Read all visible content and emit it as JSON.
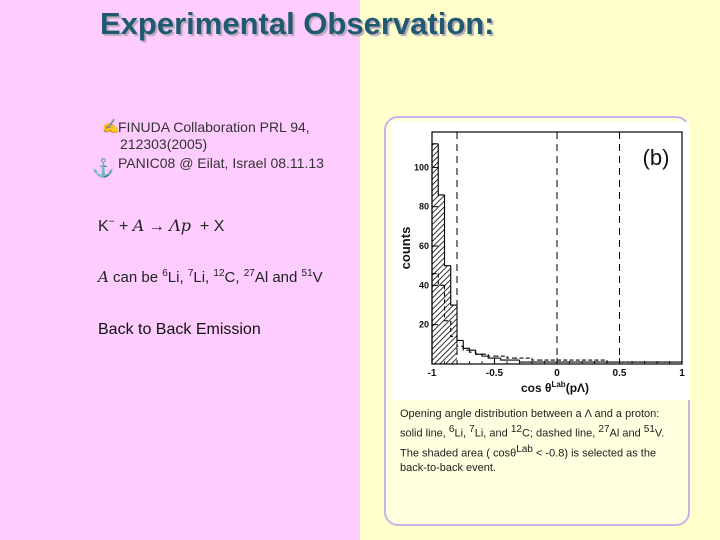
{
  "title": "Experimental Observation:",
  "reference": {
    "line1": "FINUDA Collaboration PRL 94,",
    "line2": "212303(2005)",
    "line3": "PANIC08 @ Eilat, Israel    08.11.13"
  },
  "icons": {
    "pencil": "pencil-icon",
    "anchor": "anchor-icon"
  },
  "reaction": {
    "kaon": "K",
    "kaon_charge": "−",
    "plus1": "+",
    "target": "A",
    "arrow": "→",
    "products": "Λp",
    "plus2": "+",
    "remnant": "X"
  },
  "targets": {
    "a_symbol": "A",
    "text": "can be",
    "li6_mass": "6",
    "li6_el": "Li,",
    "li7_mass": "7",
    "li7_el": "Li,",
    "c12_mass": "12",
    "c12_el": "C,",
    "al27_mass": "27",
    "al27_el": "Al and",
    "v51_mass": "51",
    "v51_el": "V"
  },
  "statement": "Back to Back Emission",
  "caption": {
    "line1": "Opening angle distribution between a Λ and a proton:",
    "line2_a": "solid line,",
    "line2_li6": "6",
    "line2_b": "Li,",
    "line2_li7": "7",
    "line2_c": "Li, and",
    "line2_c12": "12",
    "line2_d": "C; dashed line,",
    "line2_al": "27",
    "line2_e": "Al and",
    "line2_v": "51",
    "line2_f": "V.",
    "line3": "The shaded area ( cosθ",
    "line3_sup": "Lab",
    "line3_b": " < -0.8) is selected as the",
    "line4": "back-to-back event."
  },
  "colors": {
    "left_bg": "#ffccff",
    "right_bg": "#ffffcc",
    "title": "#1f5a70",
    "frame": "#c8b4e4"
  },
  "chart_data": {
    "type": "histogram",
    "panel_label": "(b)",
    "ylabel": "counts",
    "xlabel": "cos θ",
    "xlabel_sup": "Lab",
    "xlabel_tail": "(pΛ)",
    "xlim": [
      -1,
      1
    ],
    "ylim": [
      0,
      118
    ],
    "x_ticks": [
      -1,
      -0.5,
      0,
      0.5,
      1
    ],
    "x_tick_labels": [
      "-1",
      "-0.5",
      "0",
      "0.5",
      "1"
    ],
    "y_ticks": [
      20,
      40,
      60,
      80,
      100
    ],
    "y_tick_labels": [
      "20",
      "40",
      "60",
      "80",
      "100"
    ],
    "vertical_dashed_lines": [
      -0.8,
      0.0,
      0.5
    ],
    "bin_edges": [
      -1.0,
      -0.95,
      -0.9,
      -0.85,
      -0.8,
      -0.75,
      -0.7,
      -0.65,
      -0.6,
      -0.55,
      -0.5,
      -0.45,
      -0.4,
      -0.35,
      -0.3,
      -0.25,
      -0.2,
      -0.15,
      -0.1,
      -0.05,
      0.0,
      0.05,
      0.1,
      0.15,
      0.2,
      0.25,
      0.3,
      0.35,
      0.4,
      0.45,
      0.5,
      0.55,
      0.6,
      0.65,
      0.7,
      0.75,
      0.8,
      0.85,
      0.9,
      0.95,
      1.0
    ],
    "shaded_range": [
      -1,
      -0.8
    ],
    "series": [
      {
        "style": "solid",
        "values": [
          112,
          86,
          50,
          30,
          12,
          8,
          7,
          5,
          4,
          3,
          3,
          2,
          2,
          2,
          1,
          1,
          1,
          1,
          1,
          1,
          1,
          1,
          1,
          1,
          1,
          1,
          1,
          1,
          1,
          1,
          1,
          1,
          1,
          1,
          1,
          1,
          1,
          1,
          1,
          1
        ]
      },
      {
        "style": "dashed",
        "values": [
          46,
          40,
          22,
          14,
          9,
          7,
          6,
          5,
          5,
          4,
          4,
          4,
          3,
          3,
          3,
          3,
          2,
          2,
          2,
          2,
          2,
          2,
          2,
          2,
          2,
          2,
          2,
          2,
          1,
          1,
          1,
          1,
          1,
          1,
          1,
          1,
          1,
          1,
          1,
          1
        ]
      }
    ]
  }
}
